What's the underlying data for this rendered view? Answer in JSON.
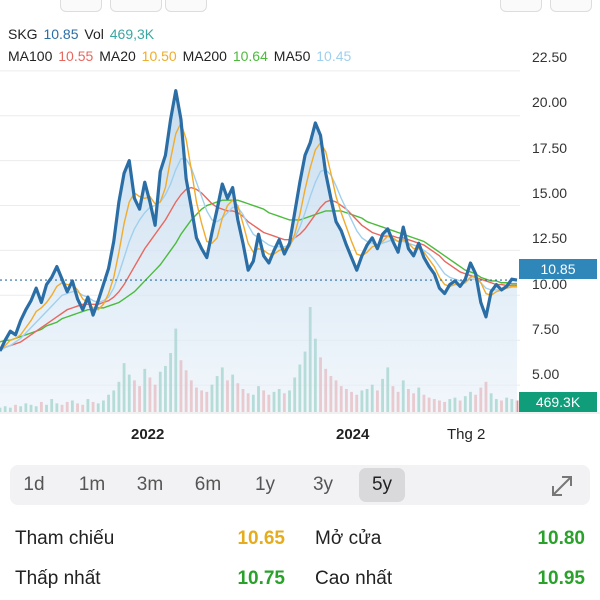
{
  "colors": {
    "price": "#2b6ea6",
    "volume_label": "#3aa7a2",
    "ma100": "#e8675f",
    "ma20": "#f0ac2c",
    "ma200": "#4cbb3c",
    "ma50": "#9fd0ee",
    "up": "#3aa788",
    "down": "#e36a6a",
    "ref_yellow": "#e6ac1f",
    "green_value": "#29a12a"
  },
  "legend": {
    "symbol": "SKG",
    "price": "10.85",
    "vol_label": "Vol",
    "vol": "469,3K",
    "ma100_label": "MA100",
    "ma100": "10.55",
    "ma20_label": "MA20",
    "ma20": "10.50",
    "ma200_label": "MA200",
    "ma200": "10.64",
    "ma50_label": "MA50",
    "ma50": "10.45"
  },
  "price_tag": "10.85",
  "volume_tag": "469.3K",
  "ranges": [
    "1d",
    "1m",
    "3m",
    "6m",
    "1y",
    "3y",
    "5y"
  ],
  "active_range": "5y",
  "stats": {
    "ref_label": "Tham chiếu",
    "ref_value": "10.65",
    "open_label": "Mở cửa",
    "open_value": "10.80",
    "low_label": "Thấp nhất",
    "low_value": "10.75",
    "high_label": "Cao nhất",
    "high_value": "10.95"
  },
  "chart_data": {
    "type": "line",
    "y_ticks": [
      "22.50",
      "20.00",
      "17.50",
      "15.00",
      "12.50",
      "10.00",
      "7.50",
      "5.00"
    ],
    "ylim": [
      3.5,
      24.5
    ],
    "x_tick_labels": [
      "2022",
      "2024",
      "Thg 2"
    ],
    "last_price": 10.85,
    "series": [
      {
        "name": "SKG",
        "values": [
          6.9,
          7.5,
          8.0,
          7.8,
          8.6,
          9.2,
          9.7,
          10.4,
          9.6,
          10.6,
          11.0,
          11.6,
          10.9,
          10.2,
          10.8,
          9.8,
          9.2,
          9.9,
          8.9,
          9.7,
          10.6,
          11.5,
          13.0,
          15.2,
          16.8,
          17.5,
          15.4,
          14.8,
          16.3,
          15.2,
          13.9,
          16.9,
          17.8,
          19.8,
          21.4,
          19.8,
          16.5,
          14.9,
          13.2,
          12.6,
          12.1,
          13.5,
          14.8,
          16.2,
          15.4,
          16.0,
          14.2,
          12.9,
          11.4,
          11.9,
          13.4,
          12.2,
          11.8,
          12.5,
          13.1,
          12.3,
          12.9,
          14.6,
          16.3,
          17.8,
          18.5,
          19.6,
          18.9,
          16.8,
          15.4,
          14.1,
          13.6,
          12.8,
          12.1,
          11.4,
          12.2,
          12.8,
          13.2,
          12.6,
          13.4,
          13.7,
          13.0,
          12.4,
          13.8,
          12.6,
          12.2,
          12.9,
          12.1,
          11.6,
          11.2,
          10.4,
          10.1,
          10.6,
          10.8,
          10.5,
          10.9,
          11.8,
          11.2,
          9.6,
          8.8,
          10.2,
          10.6,
          10.3,
          10.5,
          10.9,
          10.85
        ]
      },
      {
        "name": "MA20",
        "values": [
          6.9,
          7.2,
          7.5,
          7.6,
          7.8,
          8.2,
          8.6,
          9.1,
          9.3,
          9.6,
          10.0,
          10.5,
          10.7,
          10.6,
          10.6,
          10.3,
          9.8,
          9.6,
          9.3,
          9.2,
          9.5,
          10.1,
          11.0,
          12.4,
          14.0,
          15.2,
          15.7,
          15.5,
          15.4,
          15.5,
          15.1,
          15.2,
          16.0,
          17.6,
          19.0,
          19.6,
          18.7,
          17.0,
          15.2,
          14.0,
          13.0,
          12.9,
          13.2,
          14.3,
          15.0,
          15.3,
          15.0,
          14.0,
          12.9,
          12.4,
          12.6,
          12.5,
          12.3,
          12.3,
          12.5,
          12.6,
          12.7,
          13.4,
          14.5,
          15.9,
          17.1,
          18.1,
          18.5,
          18.0,
          16.8,
          15.5,
          14.6,
          13.8,
          13.0,
          12.3,
          12.2,
          12.4,
          12.7,
          12.8,
          13.0,
          13.3,
          13.2,
          13.0,
          13.1,
          12.9,
          12.6,
          12.6,
          12.4,
          12.0,
          11.6,
          11.0,
          10.6,
          10.5,
          10.6,
          10.6,
          10.7,
          11.0,
          11.1,
          10.7,
          10.1,
          10.0,
          10.2,
          10.3,
          10.4,
          10.5,
          10.5
        ]
      },
      {
        "name": "MA50",
        "values": [
          6.9,
          7.1,
          7.2,
          7.4,
          7.6,
          7.9,
          8.2,
          8.5,
          8.8,
          9.1,
          9.4,
          9.7,
          10.0,
          10.1,
          10.2,
          10.2,
          10.0,
          9.9,
          9.7,
          9.6,
          9.7,
          9.9,
          10.4,
          11.2,
          12.1,
          13.0,
          13.7,
          14.2,
          14.6,
          14.9,
          15.0,
          15.2,
          15.6,
          16.2,
          17.0,
          17.6,
          17.6,
          17.1,
          16.3,
          15.5,
          14.7,
          14.2,
          14.1,
          14.3,
          14.6,
          14.9,
          14.9,
          14.5,
          13.9,
          13.4,
          13.2,
          13.0,
          12.8,
          12.7,
          12.7,
          12.7,
          12.8,
          13.2,
          13.8,
          14.6,
          15.5,
          16.3,
          16.9,
          17.0,
          16.7,
          16.1,
          15.4,
          14.8,
          14.2,
          13.6,
          13.2,
          13.0,
          12.9,
          12.8,
          12.9,
          13.0,
          13.1,
          13.0,
          13.0,
          12.9,
          12.8,
          12.7,
          12.5,
          12.3,
          12.0,
          11.6,
          11.2,
          11.0,
          10.9,
          10.8,
          10.8,
          10.9,
          10.9,
          10.7,
          10.4,
          10.3,
          10.3,
          10.3,
          10.4,
          10.45,
          10.45
        ]
      },
      {
        "name": "MA100",
        "values": [
          7.0,
          7.1,
          7.2,
          7.3,
          7.4,
          7.6,
          7.8,
          8.0,
          8.2,
          8.4,
          8.6,
          8.8,
          9.0,
          9.2,
          9.3,
          9.4,
          9.5,
          9.5,
          9.5,
          9.5,
          9.6,
          9.7,
          9.9,
          10.2,
          10.6,
          11.1,
          11.6,
          12.1,
          12.6,
          13.0,
          13.4,
          13.8,
          14.2,
          14.7,
          15.2,
          15.6,
          15.9,
          16.0,
          15.9,
          15.7,
          15.4,
          15.1,
          14.9,
          14.8,
          14.7,
          14.7,
          14.6,
          14.4,
          14.1,
          13.9,
          13.7,
          13.5,
          13.4,
          13.3,
          13.2,
          13.1,
          13.1,
          13.2,
          13.4,
          13.7,
          14.1,
          14.5,
          14.9,
          15.2,
          15.3,
          15.2,
          15.0,
          14.8,
          14.5,
          14.2,
          13.9,
          13.7,
          13.5,
          13.4,
          13.3,
          13.3,
          13.3,
          13.2,
          13.2,
          13.1,
          13.0,
          12.9,
          12.8,
          12.6,
          12.4,
          12.2,
          11.9,
          11.7,
          11.5,
          11.3,
          11.2,
          11.1,
          11.0,
          10.9,
          10.8,
          10.7,
          10.6,
          10.6,
          10.55,
          10.55,
          10.55
        ]
      },
      {
        "name": "MA200",
        "values": [
          7.4,
          7.5,
          7.5,
          7.6,
          7.7,
          7.8,
          7.9,
          8.0,
          8.1,
          8.3,
          8.4,
          8.5,
          8.7,
          8.8,
          8.9,
          9.0,
          9.1,
          9.2,
          9.2,
          9.3,
          9.3,
          9.4,
          9.5,
          9.6,
          9.8,
          10.0,
          10.2,
          10.5,
          10.8,
          11.1,
          11.4,
          11.7,
          12.1,
          12.5,
          12.9,
          13.4,
          13.8,
          14.2,
          14.5,
          14.8,
          15.0,
          15.1,
          15.2,
          15.3,
          15.3,
          15.3,
          15.3,
          15.2,
          15.1,
          15.0,
          14.9,
          14.8,
          14.6,
          14.5,
          14.4,
          14.3,
          14.2,
          14.2,
          14.2,
          14.3,
          14.4,
          14.5,
          14.6,
          14.7,
          14.7,
          14.7,
          14.7,
          14.6,
          14.5,
          14.4,
          14.3,
          14.1,
          14.0,
          13.9,
          13.8,
          13.7,
          13.6,
          13.5,
          13.4,
          13.3,
          13.2,
          13.1,
          13.0,
          12.8,
          12.6,
          12.4,
          12.2,
          12.0,
          11.8,
          11.6,
          11.4,
          11.3,
          11.2,
          11.0,
          10.9,
          10.8,
          10.8,
          10.7,
          10.7,
          10.64,
          10.64
        ]
      }
    ],
    "volume_max": 7.3,
    "volume_values": [
      0.3,
      0.4,
      0.3,
      0.5,
      0.4,
      0.6,
      0.5,
      0.4,
      0.7,
      0.5,
      0.9,
      0.6,
      0.5,
      0.7,
      0.8,
      0.6,
      0.5,
      0.9,
      0.7,
      0.6,
      0.8,
      1.2,
      1.5,
      2.1,
      3.4,
      2.6,
      2.2,
      1.8,
      3.0,
      2.4,
      1.9,
      2.8,
      3.2,
      4.1,
      5.8,
      3.6,
      2.9,
      2.2,
      1.7,
      1.5,
      1.4,
      1.9,
      2.5,
      3.1,
      2.2,
      2.6,
      2.0,
      1.6,
      1.3,
      1.2,
      1.8,
      1.5,
      1.2,
      1.4,
      1.6,
      1.3,
      1.5,
      2.4,
      3.3,
      4.2,
      7.3,
      5.1,
      3.8,
      3.0,
      2.5,
      2.2,
      1.8,
      1.6,
      1.4,
      1.2,
      1.5,
      1.6,
      1.9,
      1.5,
      2.3,
      3.1,
      1.8,
      1.4,
      2.2,
      1.6,
      1.3,
      1.7,
      1.2,
      1.0,
      0.9,
      0.8,
      0.7,
      0.9,
      1.0,
      0.8,
      1.1,
      1.4,
      1.2,
      1.7,
      2.1,
      1.3,
      0.9,
      0.8,
      1.0,
      0.9,
      0.8
    ]
  }
}
